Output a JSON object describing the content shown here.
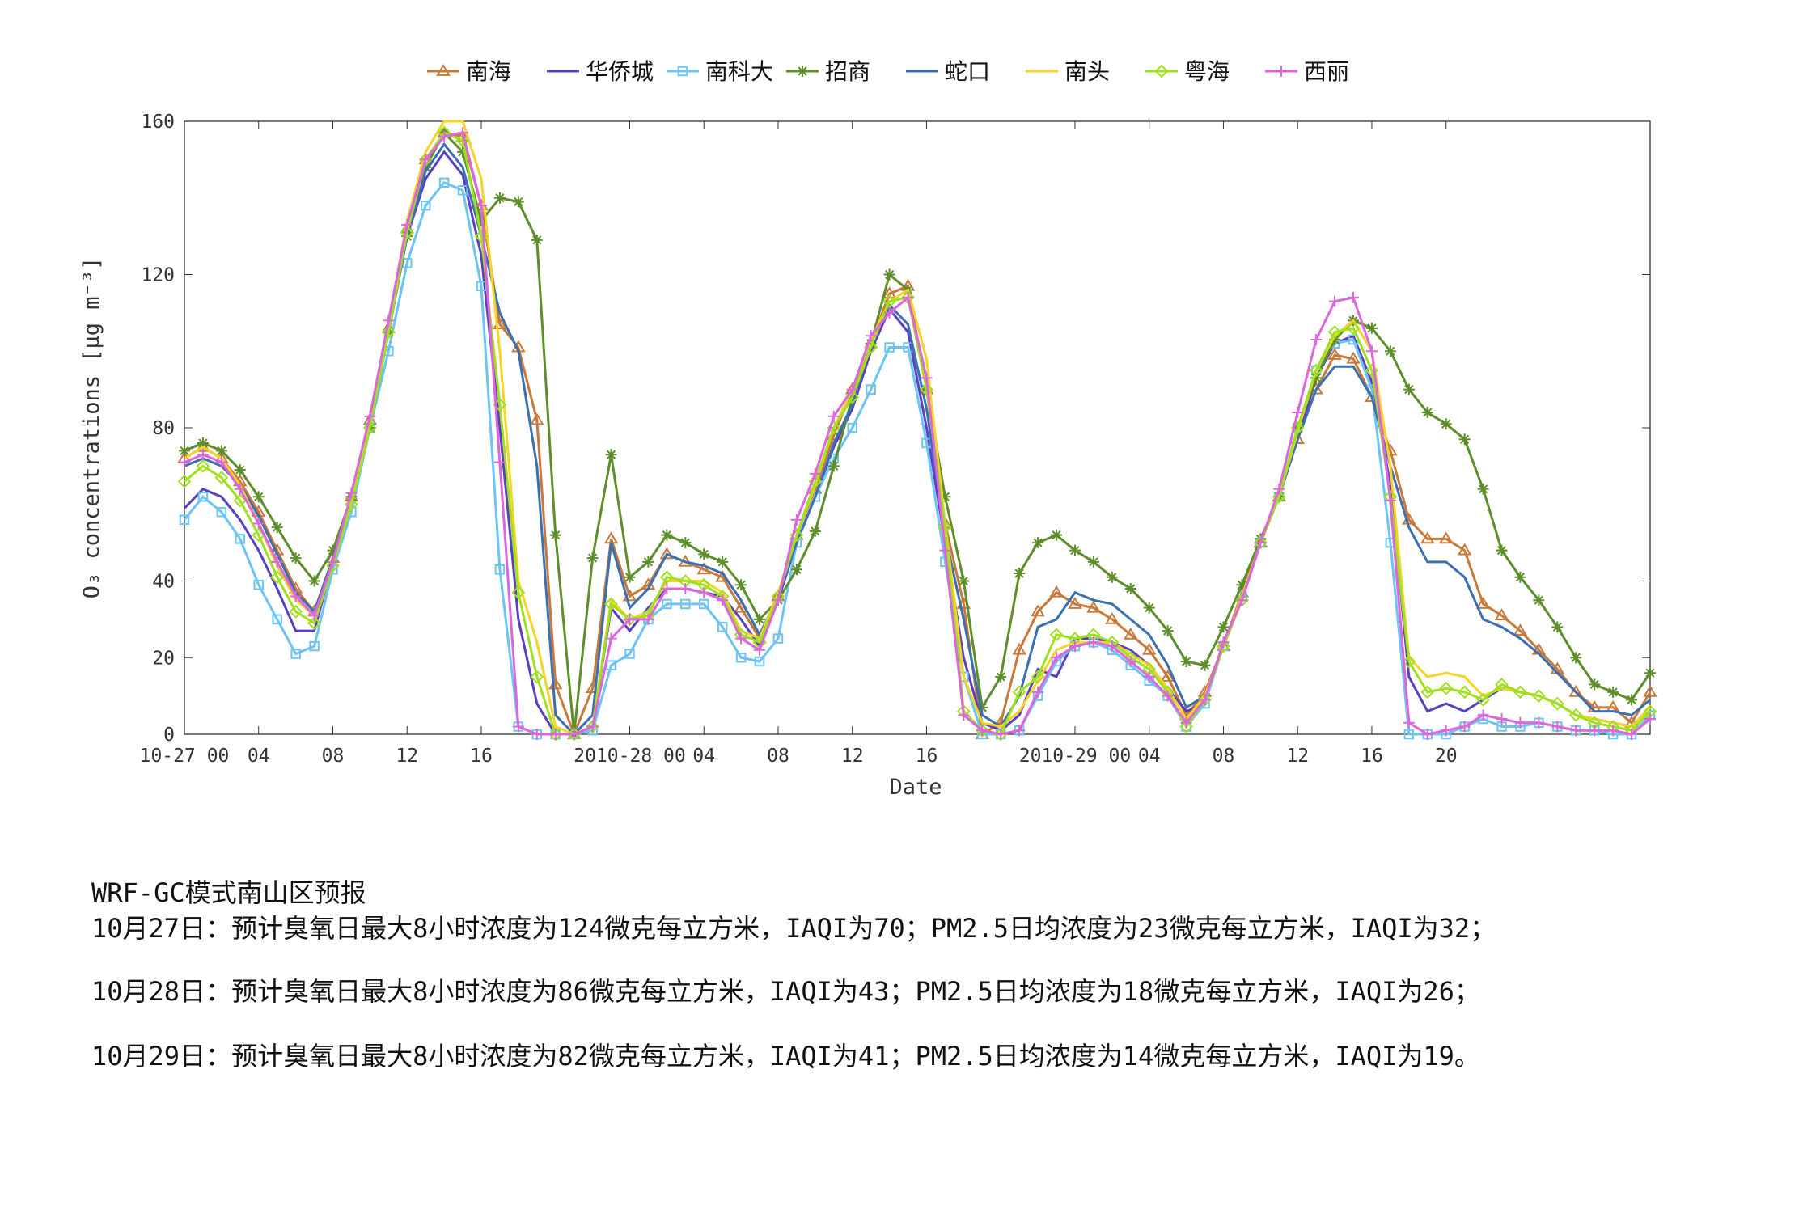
{
  "chart_data": {
    "type": "line",
    "xlabel": "Date",
    "ylabel": "O₃ concentrations [μg m⁻³]",
    "x": [
      0,
      1,
      2,
      3,
      4,
      5,
      6,
      7,
      8,
      9,
      10,
      11,
      12,
      13,
      14,
      15,
      16,
      17,
      18,
      19,
      20,
      21,
      22,
      23,
      24,
      25,
      26,
      27,
      28,
      29,
      30,
      31,
      32,
      33,
      34,
      35,
      36,
      37,
      38,
      39,
      40,
      41,
      42,
      43,
      44,
      45,
      46,
      47,
      48,
      49,
      50,
      51,
      52,
      53,
      54,
      55,
      56,
      57,
      58,
      59,
      60,
      61,
      62,
      63,
      64,
      65,
      66,
      67,
      68,
      69,
      70,
      71,
      72,
      73,
      74,
      75,
      76,
      77,
      78,
      79
    ],
    "xlim": [
      0,
      79
    ],
    "xticks": [
      {
        "value": 0,
        "label": "10-27 00"
      },
      {
        "value": 4,
        "label": "04"
      },
      {
        "value": 8,
        "label": "08"
      },
      {
        "value": 12,
        "label": "12"
      },
      {
        "value": 16,
        "label": "16"
      },
      {
        "value": 24,
        "label": "2010-28 00"
      },
      {
        "value": 28,
        "label": "04"
      },
      {
        "value": 32,
        "label": "08"
      },
      {
        "value": 36,
        "label": "12"
      },
      {
        "value": 40,
        "label": "16"
      },
      {
        "value": 48,
        "label": "2010-29 00"
      },
      {
        "value": 52,
        "label": "04"
      },
      {
        "value": 56,
        "label": "08"
      },
      {
        "value": 60,
        "label": "12"
      },
      {
        "value": 64,
        "label": "16"
      },
      {
        "value": 68,
        "label": "20"
      }
    ],
    "ylim": [
      0,
      160
    ],
    "yticks": [
      0,
      20,
      40,
      80,
      120,
      160
    ],
    "series": [
      {
        "name": "南海",
        "color": "#c8783a",
        "marker": "triangle",
        "values": [
          72,
          75,
          72,
          66,
          58,
          48,
          38,
          32,
          46,
          62,
          82,
          106,
          132,
          150,
          157,
          156,
          138,
          107,
          101,
          82,
          13,
          0,
          12,
          51,
          36,
          39,
          47,
          45,
          43,
          41,
          33,
          25,
          36,
          52,
          64,
          78,
          90,
          102,
          115,
          117,
          90,
          55,
          34,
          0,
          3,
          22,
          32,
          37,
          34,
          33,
          30,
          26,
          22,
          15,
          5,
          11,
          23,
          37,
          50,
          62,
          77,
          90,
          99,
          98,
          88,
          74,
          56,
          51,
          51,
          48,
          34,
          31,
          27,
          22,
          17,
          11,
          7,
          7,
          3,
          11
        ]
      },
      {
        "name": "华侨城",
        "color": "#5a3fc0",
        "values": [
          59,
          64,
          62,
          56,
          48,
          38,
          27,
          27,
          45,
          60,
          80,
          105,
          130,
          145,
          152,
          146,
          125,
          80,
          30,
          8,
          0,
          0,
          2,
          33,
          27,
          33,
          38,
          38,
          37,
          36,
          30,
          23,
          35,
          50,
          62,
          75,
          85,
          100,
          111,
          105,
          80,
          50,
          20,
          3,
          1,
          5,
          17,
          15,
          25,
          25,
          24,
          22,
          18,
          12,
          6,
          8,
          24,
          35,
          50,
          62,
          77,
          93,
          102,
          104,
          92,
          65,
          15,
          6,
          8,
          6,
          9,
          12,
          11,
          10,
          8,
          5,
          4,
          3,
          2,
          7
        ]
      },
      {
        "name": "南科大",
        "color": "#6cc4f4",
        "marker": "square",
        "values": [
          56,
          62,
          58,
          51,
          39,
          30,
          21,
          23,
          43,
          58,
          80,
          100,
          123,
          138,
          144,
          142,
          117,
          43,
          2,
          0,
          0,
          0,
          1,
          18,
          21,
          30,
          34,
          34,
          34,
          28,
          20,
          19,
          25,
          50,
          62,
          72,
          80,
          90,
          101,
          101,
          76,
          45,
          15,
          0,
          0,
          1,
          10,
          19,
          23,
          24,
          22,
          18,
          14,
          10,
          2,
          8,
          23,
          36,
          50,
          62,
          80,
          95,
          102,
          103,
          90,
          50,
          0,
          0,
          0,
          2,
          4,
          2,
          2,
          3,
          2,
          1,
          1,
          0,
          0,
          5
        ]
      },
      {
        "name": "招商",
        "color": "#5e8e2a",
        "marker": "star",
        "values": [
          74,
          76,
          74,
          69,
          62,
          54,
          46,
          40,
          48,
          62,
          80,
          105,
          130,
          148,
          157,
          152,
          134,
          140,
          139,
          129,
          52,
          0,
          46,
          73,
          41,
          45,
          52,
          50,
          47,
          45,
          39,
          30,
          35,
          43,
          53,
          70,
          88,
          102,
          120,
          116,
          90,
          62,
          40,
          7,
          15,
          42,
          50,
          52,
          48,
          45,
          41,
          38,
          33,
          27,
          19,
          18,
          28,
          39,
          51,
          62,
          80,
          93,
          103,
          108,
          106,
          100,
          90,
          84,
          81,
          77,
          64,
          48,
          41,
          35,
          28,
          20,
          13,
          11,
          9,
          16
        ]
      },
      {
        "name": "蛇口",
        "color": "#3a6fb0",
        "values": [
          70,
          72,
          70,
          65,
          57,
          47,
          37,
          32,
          46,
          61,
          80,
          105,
          130,
          147,
          154,
          148,
          130,
          110,
          100,
          70,
          5,
          0,
          5,
          50,
          33,
          38,
          47,
          45,
          44,
          42,
          35,
          26,
          36,
          50,
          62,
          76,
          86,
          102,
          112,
          107,
          85,
          52,
          30,
          5,
          2,
          10,
          28,
          30,
          37,
          35,
          34,
          30,
          26,
          18,
          7,
          10,
          23,
          36,
          50,
          62,
          77,
          90,
          96,
          96,
          88,
          70,
          54,
          45,
          45,
          41,
          30,
          28,
          25,
          21,
          16,
          11,
          6,
          6,
          5,
          9
        ]
      },
      {
        "name": "南头",
        "color": "#f5d327",
        "values": [
          72,
          75,
          72,
          65,
          55,
          44,
          35,
          31,
          45,
          62,
          82,
          107,
          134,
          152,
          160,
          160,
          145,
          100,
          40,
          24,
          2,
          0,
          2,
          35,
          30,
          32,
          40,
          40,
          40,
          37,
          27,
          25,
          37,
          52,
          65,
          80,
          90,
          103,
          113,
          116,
          98,
          55,
          15,
          3,
          2,
          6,
          14,
          22,
          24,
          24,
          24,
          21,
          18,
          12,
          4,
          10,
          23,
          36,
          50,
          62,
          79,
          95,
          104,
          108,
          100,
          70,
          20,
          15,
          16,
          15,
          10,
          12,
          11,
          10,
          8,
          5,
          4,
          3,
          2,
          7
        ]
      },
      {
        "name": "粤海",
        "color": "#a0e020",
        "marker": "diamond",
        "values": [
          66,
          70,
          67,
          61,
          52,
          41,
          32,
          29,
          44,
          60,
          80,
          105,
          131,
          150,
          157,
          155,
          130,
          86,
          37,
          15,
          0,
          0,
          2,
          34,
          30,
          31,
          41,
          40,
          39,
          36,
          26,
          24,
          36,
          52,
          66,
          80,
          88,
          101,
          113,
          114,
          90,
          54,
          6,
          1,
          0,
          11,
          15,
          26,
          25,
          26,
          24,
          20,
          17,
          11,
          2,
          9,
          23,
          35,
          50,
          62,
          80,
          95,
          105,
          106,
          95,
          62,
          19,
          11,
          12,
          11,
          9,
          13,
          11,
          10,
          8,
          5,
          3,
          2,
          1,
          6
        ]
      },
      {
        "name": "西丽",
        "color": "#dd66dd",
        "marker": "plus",
        "values": [
          71,
          73,
          71,
          64,
          55,
          45,
          36,
          31,
          45,
          63,
          83,
          108,
          133,
          150,
          156,
          157,
          138,
          71,
          2,
          0,
          0,
          0,
          2,
          25,
          30,
          30,
          38,
          38,
          37,
          35,
          25,
          22,
          35,
          56,
          68,
          83,
          90,
          104,
          110,
          114,
          93,
          48,
          5,
          1,
          0,
          1,
          11,
          20,
          23,
          24,
          23,
          19,
          15,
          10,
          3,
          9,
          24,
          35,
          50,
          64,
          84,
          103,
          113,
          114,
          100,
          61,
          3,
          0,
          1,
          2,
          5,
          4,
          3,
          3,
          2,
          1,
          1,
          1,
          0,
          4
        ]
      }
    ]
  },
  "forecast": {
    "title": "WRF-GC模式南山区预报",
    "lines": [
      "10月27日：预计臭氧日最大8小时浓度为124微克每立方米，IAQI为70；PM2.5日均浓度为23微克每立方米，IAQI为32；",
      "10月28日：预计臭氧日最大8小时浓度为86微克每立方米，IAQI为43；PM2.5日均浓度为18微克每立方米，IAQI为26；",
      "10月29日：预计臭氧日最大8小时浓度为82微克每立方米，IAQI为41；PM2.5日均浓度为14微克每立方米，IAQI为19。"
    ]
  }
}
